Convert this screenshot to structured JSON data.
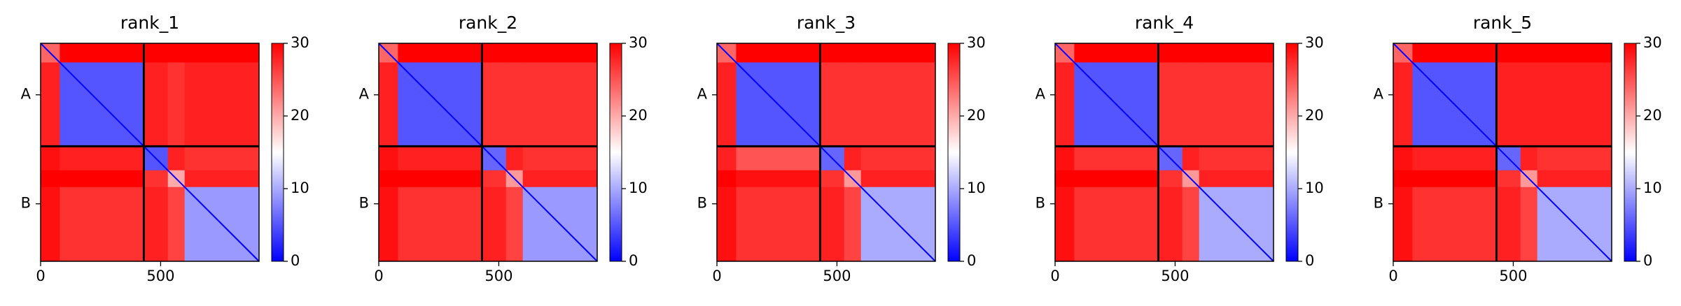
{
  "chart_data": [
    {
      "type": "heatmap",
      "title": "rank_1",
      "colormap": "bwr",
      "clim": [
        0,
        30
      ],
      "cticks": [
        0,
        10,
        20,
        30
      ],
      "xlim": [
        0,
        910
      ],
      "xticks": [
        0,
        500
      ],
      "chain_labels": [
        "A",
        "B"
      ],
      "chain_boundaries": [
        430
      ],
      "edges": [
        0,
        80,
        430,
        530,
        600,
        910
      ],
      "values": [
        [
          24,
          30,
          30,
          30,
          30
        ],
        [
          28,
          5,
          28,
          27,
          28
        ],
        [
          29,
          28,
          5,
          28,
          27
        ],
        [
          30,
          30,
          27,
          20,
          28
        ],
        [
          29,
          27,
          28,
          26,
          9
        ]
      ]
    },
    {
      "type": "heatmap",
      "title": "rank_2",
      "colormap": "bwr",
      "clim": [
        0,
        30
      ],
      "cticks": [
        0,
        10,
        20,
        30
      ],
      "xlim": [
        0,
        910
      ],
      "xticks": [
        0,
        500
      ],
      "chain_labels": [
        "A",
        "B"
      ],
      "chain_boundaries": [
        430
      ],
      "edges": [
        0,
        80,
        430,
        530,
        600,
        910
      ],
      "values": [
        [
          24,
          30,
          30,
          30,
          30
        ],
        [
          28,
          5,
          27,
          27,
          27
        ],
        [
          29,
          28,
          6,
          28,
          27
        ],
        [
          30,
          30,
          27,
          21,
          28
        ],
        [
          29,
          27,
          28,
          26,
          9
        ]
      ]
    },
    {
      "type": "heatmap",
      "title": "rank_3",
      "colormap": "bwr",
      "clim": [
        0,
        30
      ],
      "cticks": [
        0,
        10,
        20,
        30
      ],
      "xlim": [
        0,
        910
      ],
      "xticks": [
        0,
        500
      ],
      "chain_labels": [
        "A",
        "B"
      ],
      "chain_boundaries": [
        430
      ],
      "edges": [
        0,
        80,
        430,
        530,
        600,
        910
      ],
      "values": [
        [
          24,
          30,
          30,
          30,
          30
        ],
        [
          28,
          5,
          27,
          27,
          27
        ],
        [
          28,
          25,
          6,
          28,
          27
        ],
        [
          30,
          29,
          27,
          21,
          28
        ],
        [
          29,
          27,
          28,
          26,
          10
        ]
      ]
    },
    {
      "type": "heatmap",
      "title": "rank_4",
      "colormap": "bwr",
      "clim": [
        0,
        30
      ],
      "cticks": [
        0,
        10,
        20,
        30
      ],
      "xlim": [
        0,
        910
      ],
      "xticks": [
        0,
        500
      ],
      "chain_labels": [
        "A",
        "B"
      ],
      "chain_boundaries": [
        430
      ],
      "edges": [
        0,
        80,
        430,
        530,
        600,
        910
      ],
      "values": [
        [
          24,
          30,
          30,
          30,
          30
        ],
        [
          28,
          5,
          27,
          27,
          27
        ],
        [
          29,
          27,
          6,
          28,
          27
        ],
        [
          30,
          30,
          27,
          21,
          28
        ],
        [
          29,
          27,
          28,
          26,
          10
        ]
      ]
    },
    {
      "type": "heatmap",
      "title": "rank_5",
      "colormap": "bwr",
      "clim": [
        0,
        30
      ],
      "cticks": [
        0,
        10,
        20,
        30
      ],
      "xlim": [
        0,
        910
      ],
      "xticks": [
        0,
        500
      ],
      "chain_labels": [
        "A",
        "B"
      ],
      "chain_boundaries": [
        430
      ],
      "edges": [
        0,
        80,
        430,
        530,
        600,
        910
      ],
      "values": [
        [
          24,
          30,
          30,
          30,
          30
        ],
        [
          28,
          5,
          28,
          28,
          28
        ],
        [
          29,
          28,
          6,
          28,
          27
        ],
        [
          30,
          30,
          27,
          21,
          28
        ],
        [
          29,
          27,
          28,
          26,
          10
        ]
      ]
    }
  ]
}
